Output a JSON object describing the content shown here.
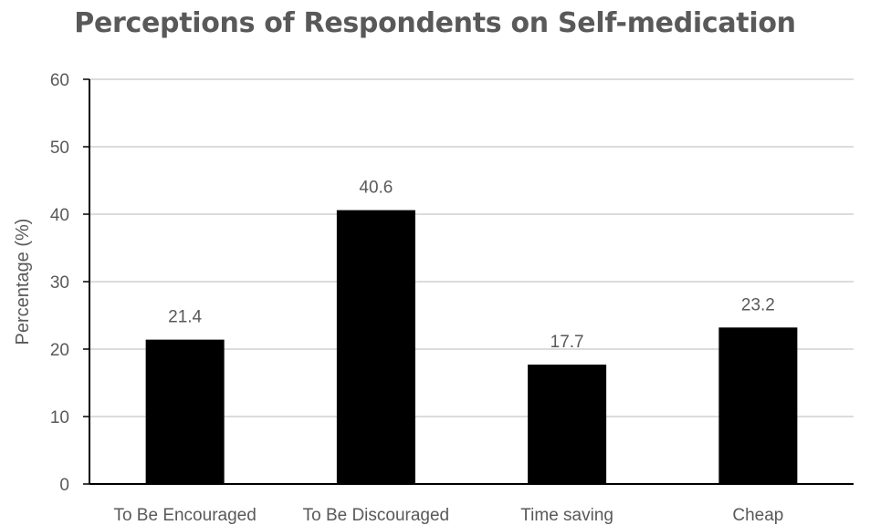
{
  "chart_data": {
    "type": "bar",
    "title": "Perceptions of Respondents on Self-medication",
    "xlabel": "",
    "ylabel": "Percentage (%)",
    "categories": [
      "To Be Encouraged",
      "To Be Discouraged",
      "Time saving",
      "Cheap"
    ],
    "values": [
      21.4,
      40.6,
      17.7,
      23.2
    ],
    "data_labels": [
      "21.4",
      "40.6",
      "17.7",
      "23.2"
    ],
    "ylim": [
      0,
      60
    ],
    "yticks": [
      0,
      10,
      20,
      30,
      40,
      50,
      60
    ],
    "grid": true,
    "legend": "none",
    "colors": {
      "bar": "#000000",
      "text": "#595959",
      "grid": "#d0d0d0",
      "axis": "#000000"
    }
  }
}
